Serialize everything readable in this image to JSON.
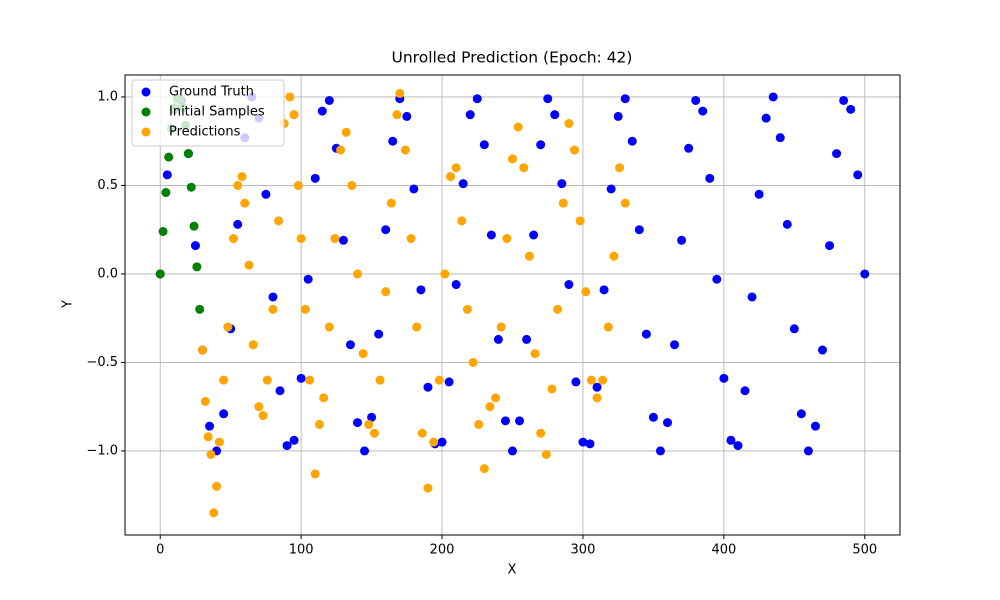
{
  "chart_data": {
    "type": "scatter",
    "title": "Unrolled Prediction (Epoch: 42)",
    "x_label": "X",
    "y_label": "Y",
    "xlim": [
      -25,
      525
    ],
    "ylim": [
      -1.475,
      1.124
    ],
    "xticks": [
      0,
      100,
      200,
      300,
      400,
      500
    ],
    "yticks": [
      {
        "value": -1.0,
        "label": "−1.0"
      },
      {
        "value": -0.5,
        "label": "−0.5"
      },
      {
        "value": 0.0,
        "label": "0.0"
      },
      {
        "value": 0.5,
        "label": "0.5"
      },
      {
        "value": 1.0,
        "label": "1.0"
      }
    ],
    "grid": true,
    "legend": "upper left",
    "series": [
      {
        "name": "Ground Truth",
        "color": "#0000ff",
        "x": [
          0,
          5,
          10,
          15,
          20,
          25,
          30,
          35,
          40,
          45,
          50,
          55,
          60,
          65,
          70,
          75,
          80,
          85,
          90,
          95,
          100,
          105,
          110,
          115,
          120,
          125,
          130,
          135,
          140,
          145,
          150,
          155,
          160,
          165,
          170,
          175,
          180,
          185,
          190,
          195,
          200,
          205,
          210,
          215,
          220,
          225,
          230,
          235,
          240,
          245,
          250,
          255,
          260,
          265,
          270,
          275,
          280,
          285,
          290,
          295,
          300,
          305,
          310,
          315,
          320,
          325,
          330,
          335,
          340,
          345,
          350,
          355,
          360,
          365,
          370,
          375,
          380,
          385,
          390,
          395,
          400,
          405,
          410,
          415,
          420,
          425,
          430,
          435,
          440,
          445,
          450,
          455,
          460,
          465,
          470,
          475,
          480,
          485,
          490,
          495,
          500
        ],
        "values": [
          0,
          0.56,
          0.93,
          0.98,
          0.68,
          0.16,
          -0.43,
          -0.86,
          -1.0,
          -0.79,
          -0.31,
          0.28,
          0.77,
          1.0,
          0.88,
          0.45,
          -0.13,
          -0.66,
          -0.97,
          -0.94,
          -0.59,
          -0.03,
          0.54,
          0.92,
          0.98,
          0.71,
          0.19,
          -0.4,
          -0.84,
          -1.0,
          -0.81,
          -0.34,
          0.25,
          0.75,
          0.99,
          0.89,
          0.48,
          -0.09,
          -0.64,
          -0.96,
          -0.95,
          -0.61,
          -0.06,
          0.51,
          0.9,
          0.99,
          0.73,
          0.22,
          -0.37,
          -0.83,
          -1.0,
          -0.83,
          -0.37,
          0.22,
          0.73,
          0.99,
          0.9,
          0.51,
          -0.06,
          -0.61,
          -0.95,
          -0.96,
          -0.64,
          -0.09,
          0.48,
          0.89,
          0.99,
          0.75,
          0.25,
          -0.34,
          -0.81,
          -1.0,
          -0.84,
          -0.4,
          0.19,
          0.71,
          0.98,
          0.92,
          0.54,
          -0.03,
          -0.59,
          -0.94,
          -0.97,
          -0.66,
          -0.13,
          0.45,
          0.88,
          1.0,
          0.77,
          0.28,
          -0.31,
          -0.79,
          -1.0,
          -0.86,
          -0.43,
          0.16,
          0.68,
          0.98,
          0.93,
          0.56,
          0
        ]
      },
      {
        "name": "Initial Samples",
        "color": "#008000",
        "x": [
          0,
          2,
          4,
          6,
          8,
          10,
          12,
          14,
          16,
          18,
          20,
          22,
          24,
          26,
          28
        ],
        "values": [
          0,
          0.24,
          0.46,
          0.66,
          0.82,
          0.94,
          0.99,
          0.99,
          0.94,
          0.84,
          0.68,
          0.49,
          0.27,
          0.04,
          -0.2
        ]
      },
      {
        "name": "Predictions",
        "color": "#ffa500",
        "x": [
          30,
          32,
          34,
          36,
          38,
          40,
          42,
          45,
          48,
          52,
          55,
          58,
          60,
          63,
          66,
          70,
          73,
          76,
          80,
          84,
          88,
          92,
          95,
          98,
          100,
          103,
          106,
          110,
          113,
          116,
          120,
          124,
          128,
          132,
          136,
          140,
          144,
          148,
          152,
          156,
          160,
          164,
          168,
          170,
          174,
          178,
          182,
          186,
          190,
          194,
          198,
          202,
          206,
          210,
          214,
          218,
          222,
          226,
          230,
          234,
          238,
          242,
          246,
          250,
          254,
          258,
          262,
          266,
          270,
          274,
          278,
          282,
          286,
          290,
          294,
          298,
          302,
          306,
          310,
          314,
          318,
          322,
          326,
          330
        ],
        "values": [
          -0.43,
          -0.72,
          -0.92,
          -1.02,
          -1.35,
          -1.2,
          -0.95,
          -0.6,
          -0.3,
          0.2,
          0.5,
          0.55,
          0.4,
          0.05,
          -0.4,
          -0.75,
          -0.8,
          -0.6,
          -0.2,
          0.3,
          0.85,
          1.0,
          0.9,
          0.5,
          0.2,
          -0.2,
          -0.6,
          -1.13,
          -0.85,
          -0.7,
          -0.3,
          0.2,
          0.7,
          0.8,
          0.5,
          0.0,
          -0.45,
          -0.85,
          -0.9,
          -0.6,
          -0.1,
          0.4,
          0.9,
          1.02,
          0.7,
          0.2,
          -0.3,
          -0.9,
          -1.21,
          -0.95,
          -0.6,
          0.0,
          0.55,
          0.6,
          0.3,
          -0.2,
          -0.5,
          -0.85,
          -1.1,
          -0.75,
          -0.7,
          -0.3,
          0.2,
          0.65,
          0.83,
          0.6,
          0.1,
          -0.45,
          -0.9,
          -1.02,
          -0.65,
          -0.2,
          0.4,
          0.85,
          0.7,
          0.3,
          -0.1,
          -0.6,
          -0.7,
          -0.6,
          -0.3,
          0.1,
          0.6,
          0.4
        ]
      }
    ]
  }
}
